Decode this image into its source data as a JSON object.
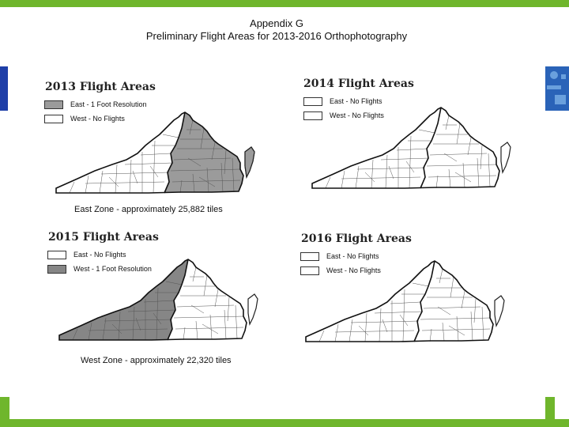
{
  "header": {
    "line1": "Appendix G",
    "line2": "Preliminary Flight Areas for 2013-2016 Orthophotography"
  },
  "colors": {
    "frame": "#6fb62c",
    "left_edge": "#1f3fa8",
    "right_edge": "#2a63b8",
    "shaded": "#9b9b9b",
    "unshaded": "#ffffff"
  },
  "panels": [
    {
      "title": "2013 Flight Areas",
      "legend": [
        {
          "label": "East -  1 Foot Resolution",
          "fill": "#9b9b9b"
        },
        {
          "label": "West  -  No Flights",
          "fill": "#ffffff"
        }
      ],
      "shaded_zone": "east",
      "caption": "East Zone - approximately 25,882 tiles"
    },
    {
      "title": "2014 Flight Areas",
      "legend": [
        {
          "label": "East - No Flights",
          "fill": "#ffffff"
        },
        {
          "label": "West  - No Flights",
          "fill": "#ffffff"
        }
      ],
      "shaded_zone": "none",
      "caption": ""
    },
    {
      "title": "2015 Flight Areas",
      "legend": [
        {
          "label": "East - No Flights",
          "fill": "#ffffff"
        },
        {
          "label": "West  -  1 Foot Resolution",
          "fill": "#868686"
        }
      ],
      "shaded_zone": "west",
      "caption": "West Zone - approximately 22,320 tiles"
    },
    {
      "title": "2016 Flight Areas",
      "legend": [
        {
          "label": "East  - No Flights",
          "fill": "#ffffff"
        },
        {
          "label": "West  - No Flights",
          "fill": "#ffffff"
        }
      ],
      "shaded_zone": "none",
      "caption": ""
    }
  ]
}
